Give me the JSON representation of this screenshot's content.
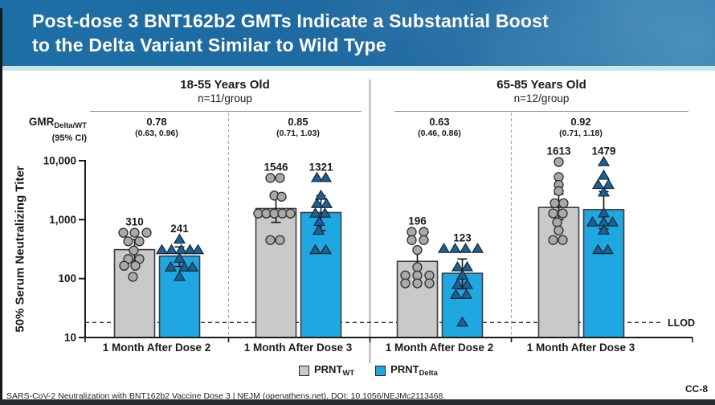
{
  "slide": {
    "title_line1": "Post-dose 3 BNT162b2 GMTs Indicate a Substantial Boost",
    "title_line2": "to the Delta Variant Similar to Wild Type",
    "footer": "SARS-CoV-2 Neutralization with BNT162b2 Vaccine Dose 3 | NEJM (openathens.net), DOI: 10.1056/NEJMc2113468.",
    "slide_code": "CC-8"
  },
  "colors": {
    "banner": "#1e6ba4",
    "banner_accent": "#c8e6e8",
    "wt_bar": "#c9c9c9",
    "delta_bar": "#1ea7e1",
    "wt_point": "#a9a9a9",
    "delta_point": "#20608f",
    "axis": "#1a1a1a"
  },
  "chart_data": {
    "type": "bar",
    "yscale": "log",
    "ylabel": "50% Serum Neutralizing Titer",
    "ylim": [
      10,
      10000
    ],
    "yticks": [
      {
        "value": 10000,
        "label": "10,000"
      },
      {
        "value": 1000,
        "label": "1,000"
      },
      {
        "value": 100,
        "label": "100"
      },
      {
        "value": 10,
        "label": "10"
      }
    ],
    "llod": {
      "label": "LLOD",
      "value": 18
    },
    "gmr_header": {
      "label": "GMR",
      "label_sub": "Delta/WT",
      "ci_label": "(95% CI)"
    },
    "legend": [
      {
        "label": "PRNT",
        "sub": "WT",
        "color": "#c9c9c9"
      },
      {
        "label": "PRNT",
        "sub": "Delta",
        "color": "#1ea7e1"
      }
    ],
    "panels": [
      {
        "title": "18-55 Years Old",
        "n_label": "n=11/group",
        "groups": [
          {
            "x_label": "1 Month After Dose 2",
            "gmr": {
              "value": "0.78",
              "ci": "(0.63, 0.96)"
            },
            "series": [
              {
                "name": "PRNT_WT",
                "gmt": 310,
                "ci": [
                  205,
                  460
                ],
                "points": [
                  [
                    -14,
                    600
                  ],
                  [
                    0,
                    600
                  ],
                  [
                    15,
                    600
                  ],
                  [
                    -8,
                    430
                  ],
                  [
                    6,
                    430
                  ],
                  [
                    -1,
                    300
                  ],
                  [
                    -8,
                    215
                  ],
                  [
                    6,
                    215
                  ],
                  [
                    -13,
                    165
                  ],
                  [
                    1,
                    165
                  ],
                  [
                    -2,
                    107
                  ]
                ]
              },
              {
                "name": "PRNT_Delta",
                "gmt": 241,
                "ci": [
                  160,
                  345
                ],
                "points": [
                  [
                    0,
                    460
                  ],
                  [
                    -22,
                    305
                  ],
                  [
                    -10,
                    305
                  ],
                  [
                    2,
                    305
                  ],
                  [
                    13,
                    305
                  ],
                  [
                    23,
                    305
                  ],
                  [
                    0,
                    218
                  ],
                  [
                    -11,
                    155
                  ],
                  [
                    6,
                    155
                  ],
                  [
                    16,
                    155
                  ],
                  [
                    0,
                    107
                  ]
                ]
              }
            ]
          },
          {
            "x_label": "1 Month After Dose 3",
            "gmr": {
              "value": "0.85",
              "ci": "(0.71, 1.03)"
            },
            "series": [
              {
                "name": "PRNT_WT",
                "gmt": 1546,
                "ci": [
                  900,
                  2560
                ],
                "points": [
                  [
                    -7,
                    5100
                  ],
                  [
                    5,
                    5100
                  ],
                  [
                    -2,
                    2560
                  ],
                  [
                    7,
                    2450
                  ],
                  [
                    -22,
                    1270
                  ],
                  [
                    -12,
                    1270
                  ],
                  [
                    -2,
                    1270
                  ],
                  [
                    8,
                    1270
                  ],
                  [
                    18,
                    1270
                  ],
                  [
                    -7,
                    450
                  ],
                  [
                    5,
                    450
                  ]
                ]
              },
              {
                "name": "PRNT_Delta",
                "gmt": 1321,
                "ci": [
                  655,
                  2550
                ],
                "points": [
                  [
                    -5,
                    5100
                  ],
                  [
                    6,
                    5100
                  ],
                  [
                    0,
                    2550
                  ],
                  [
                    -5,
                    1850
                  ],
                  [
                    7,
                    1850
                  ],
                  [
                    -7,
                    1270
                  ],
                  [
                    5,
                    1270
                  ],
                  [
                    -2,
                    920
                  ],
                  [
                    -3,
                    650
                  ],
                  [
                    -7,
                    305
                  ],
                  [
                    6,
                    305
                  ]
                ]
              }
            ]
          }
        ]
      },
      {
        "title": "65-85 Years Old",
        "n_label": "n=12/group",
        "groups": [
          {
            "x_label": "1 Month After Dose 2",
            "gmr": {
              "value": "0.63",
              "ci": "(0.46, 0.86)"
            },
            "series": [
              {
                "name": "PRNT_WT",
                "gmt": 196,
                "ci": [
                  156,
                  305
                ],
                "points": [
                  [
                    -7,
                    620
                  ],
                  [
                    8,
                    620
                  ],
                  [
                    -7,
                    450
                  ],
                  [
                    8,
                    450
                  ],
                  [
                    0,
                    305
                  ],
                  [
                    0,
                    156
                  ],
                  [
                    -15,
                    113
                  ],
                  [
                    0,
                    113
                  ],
                  [
                    15,
                    113
                  ],
                  [
                    -15,
                    83
                  ],
                  [
                    0,
                    83
                  ],
                  [
                    15,
                    83
                  ]
                ]
              },
              {
                "name": "PRNT_Delta",
                "gmt": 123,
                "ci": [
                  67,
                  215
                ],
                "points": [
                  [
                    -23,
                    320
                  ],
                  [
                    -9,
                    320
                  ],
                  [
                    4,
                    320
                  ],
                  [
                    19,
                    320
                  ],
                  [
                    -6,
                    156
                  ],
                  [
                    6,
                    156
                  ],
                  [
                    0,
                    113
                  ],
                  [
                    -6,
                    78
                  ],
                  [
                    6,
                    78
                  ],
                  [
                    -8,
                    53
                  ],
                  [
                    5,
                    53
                  ],
                  [
                    0,
                    18
                  ]
                ]
              }
            ]
          },
          {
            "x_label": "1 Month After Dose 3",
            "gmr": {
              "value": "0.92",
              "ci": "(0.71, 1.18)"
            },
            "series": [
              {
                "name": "PRNT_WT",
                "gmt": 1613,
                "ci": [
                  1000,
                  2700
                ],
                "points": [
                  [
                    0,
                    9500
                  ],
                  [
                    0,
                    5300
                  ],
                  [
                    0,
                    3900
                  ],
                  [
                    0,
                    3050
                  ],
                  [
                    -5,
                    1900
                  ],
                  [
                    6,
                    1900
                  ],
                  [
                    -7,
                    1280
                  ],
                  [
                    5,
                    1280
                  ],
                  [
                    -2,
                    900
                  ],
                  [
                    0,
                    655
                  ],
                  [
                    -7,
                    450
                  ],
                  [
                    5,
                    450
                  ]
                ]
              },
              {
                "name": "PRNT_Delta",
                "gmt": 1479,
                "ci": [
                  700,
                  3000
                ],
                "points": [
                  [
                    0,
                    9500
                  ],
                  [
                    0,
                    5600
                  ],
                  [
                    -7,
                    3900
                  ],
                  [
                    6,
                    3900
                  ],
                  [
                    0,
                    2900
                  ],
                  [
                    0,
                    1280
                  ],
                  [
                    -14,
                    900
                  ],
                  [
                    0,
                    900
                  ],
                  [
                    11,
                    900
                  ],
                  [
                    0,
                    655
                  ],
                  [
                    -7,
                    305
                  ],
                  [
                    5,
                    305
                  ]
                ]
              }
            ]
          }
        ]
      }
    ]
  }
}
